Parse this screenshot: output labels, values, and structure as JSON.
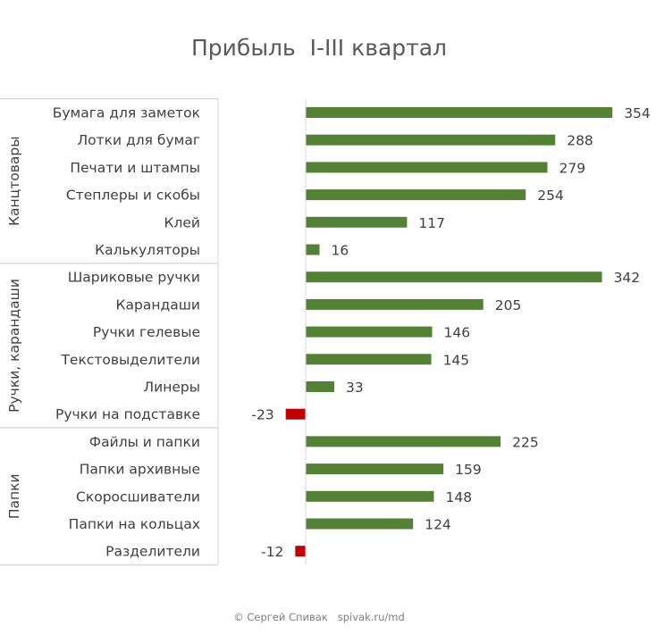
{
  "chart_data": {
    "type": "bar",
    "orientation": "horizontal",
    "title": "Прибыль  I-III квартал",
    "groups": [
      {
        "name": "Канцтовары",
        "items": [
          {
            "label": "Бумага для заметок",
            "value": 354
          },
          {
            "label": "Лотки для бумаг",
            "value": 288
          },
          {
            "label": "Печати и штампы",
            "value": 279
          },
          {
            "label": "Степлеры и скобы",
            "value": 254
          },
          {
            "label": "Клей",
            "value": 117
          },
          {
            "label": "Калькуляторы",
            "value": 16
          }
        ]
      },
      {
        "name": "Ручки, карандаши",
        "items": [
          {
            "label": "Шариковые ручки",
            "value": 342
          },
          {
            "label": "Карандаши",
            "value": 205
          },
          {
            "label": "Ручки гелевые",
            "value": 146
          },
          {
            "label": "Текстовыделители",
            "value": 145
          },
          {
            "label": "Линеры",
            "value": 33
          },
          {
            "label": "Ручки на подставке",
            "value": -23
          }
        ]
      },
      {
        "name": "Папки",
        "items": [
          {
            "label": "Файлы и папки",
            "value": 225
          },
          {
            "label": "Папки архивные",
            "value": 159
          },
          {
            "label": "Скоросшиватели",
            "value": 148
          },
          {
            "label": "Папки на кольцах",
            "value": 124
          },
          {
            "label": "Разделители",
            "value": -12
          }
        ]
      }
    ],
    "colors": {
      "positive": "#548235",
      "negative": "#c00000"
    },
    "grid": false,
    "legend": "none"
  },
  "credit": "© Сергей Спивак   spivak.ru/md"
}
